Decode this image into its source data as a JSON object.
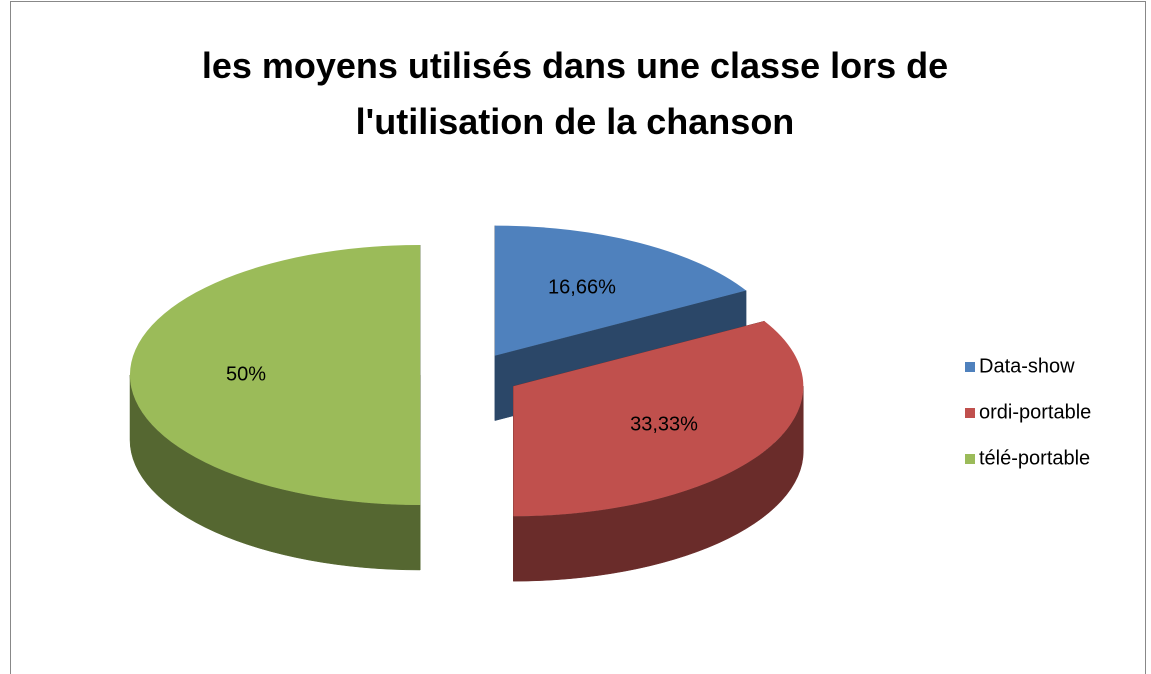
{
  "chart_data": {
    "type": "pie",
    "title": "les moyens utilisés dans une classe lors de l'utilisation de la chanson",
    "categories": [
      "Data-show",
      "ordi-portable",
      "télé-portable"
    ],
    "values": [
      16.66,
      33.33,
      50
    ],
    "value_labels": [
      "16,66%",
      "33,33%",
      "50%"
    ],
    "colors": [
      "#4f81bd",
      "#c0504d",
      "#9bbb59"
    ],
    "legend": "right"
  }
}
